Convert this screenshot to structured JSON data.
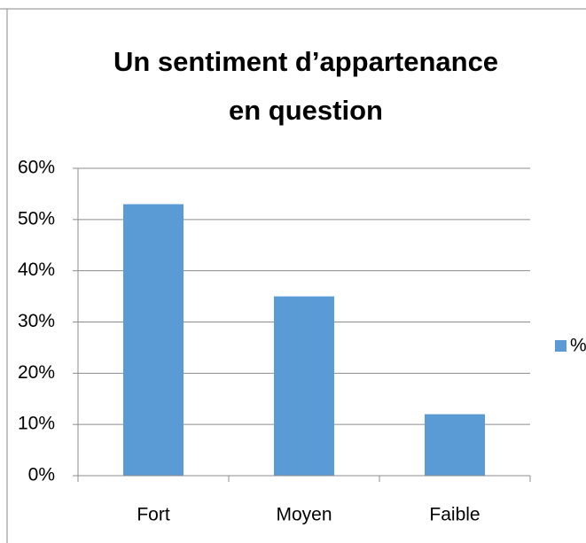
{
  "chart_data": {
    "type": "bar",
    "title": [
      "Un sentiment d’appartenance",
      "en question"
    ],
    "categories": [
      "Fort",
      "Moyen",
      "Faible"
    ],
    "series": [
      {
        "name": "%",
        "color": "#5b9bd5",
        "values": [
          53,
          35,
          12
        ]
      }
    ],
    "ylim": [
      0,
      60
    ],
    "yticks": [
      {
        "value": 0,
        "label": "0%"
      },
      {
        "value": 10,
        "label": "10%"
      },
      {
        "value": 20,
        "label": "20%"
      },
      {
        "value": 30,
        "label": "30%"
      },
      {
        "value": 40,
        "label": "40%"
      },
      {
        "value": 50,
        "label": "50%"
      },
      {
        "value": 60,
        "label": "60%"
      }
    ],
    "grid": true,
    "legend": "right"
  }
}
